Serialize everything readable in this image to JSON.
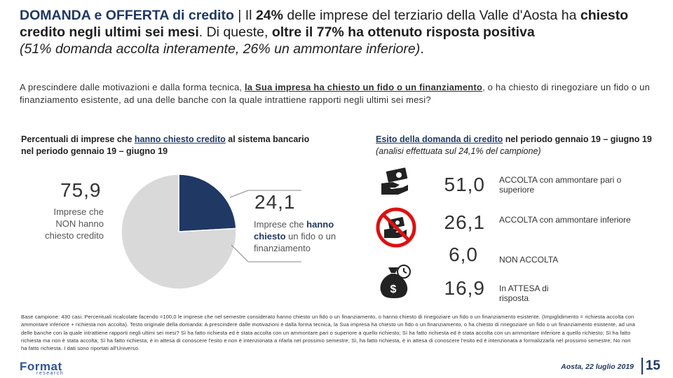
{
  "title": {
    "lead": "DOMANDA e OFFERTA di credito",
    "sep": " | ",
    "p1": "Il ",
    "p1b": "24%",
    "p2": " delle imprese del terziario della Valle d'Aosta ha ",
    "p2b": "chiesto credito negli ultimi sei mesi",
    "p3": ". Di queste, ",
    "p3b": "oltre il 77% ha ottenuto risposta positiva",
    "p4": "(51% domanda accolta interamente, 26% un ammontare inferiore)",
    "p4end": "."
  },
  "question": {
    "q1": "A prescindere dalle motivazioni e dalla forma tecnica, ",
    "q1u": "la Sua impresa ha chiesto un fido  o un finanziamento",
    "q2": ", o ha chiesto di rinegoziare un fido o un finanziamento esistente, ad una delle banche con la quale intrattiene rapporti negli ultimi sei mesi?"
  },
  "left_subtitle": {
    "a": "Percentuali di imprese che ",
    "link": "hanno chiesto credito",
    "b": " al sistema bancario nel periodo gennaio 19 – giugno 19"
  },
  "right_subtitle": {
    "link": "Esito della domanda di credito",
    "a": " nel periodo gennaio 19 – giugno 19 ",
    "note": "(analisi effettuata sul 24,1% del campione)"
  },
  "pie": {
    "no_value": "75,9",
    "no_label_1": "Imprese che",
    "no_label_2": "NON hanno",
    "no_label_3": "chiesto credito",
    "yes_value": "24,1",
    "yes_label_a": "Imprese che ",
    "yes_label_b": "hanno chiesto",
    "yes_label_c": " un fido o un finanziamento"
  },
  "chart_data": {
    "type": "pie",
    "title": "Percentuali di imprese che hanno chiesto credito al sistema bancario nel periodo gennaio 19 – giugno 19",
    "categories": [
      "Imprese che NON hanno chiesto credito",
      "Imprese che hanno chiesto un fido o un finanziamento"
    ],
    "values": [
      75.9,
      24.1
    ],
    "colors": [
      "#d9d9d9",
      "#1f3864"
    ]
  },
  "results": [
    {
      "value": "51,0",
      "label": "ACCOLTA con ammontare pari o superiore",
      "icon": "money-hand-icon"
    },
    {
      "value": "26,1",
      "label": "ACCOLTA con ammontare inferiore",
      "icon": "no-money-hand-icon"
    },
    {
      "value": "6,0",
      "label": "NON ACCOLTA",
      "icon": "none"
    },
    {
      "value": "16,9",
      "label": "In ATTESA di risposta",
      "icon": "money-bag-clock-icon"
    }
  ],
  "footnote": "Base campione: 430 casi. Percentuali ricalcolate facendo =100,0 le imprese che nel semestre considerato hanno chiesto un fido o un finanziamento, o hanno chiesto di rinegoziare un fido o un finanziamento esistente. (Impiglidimento = richiesta accolta con ammontare inferiore + richiesta non accolta). Testo originale della domanda: A prescindere dalle motivazioni e dalla forma tecnica, la Sua impresa ha chiesto un fido o un finanziamento, o ha chiesto di rinegoziare un fido o un finanziamento esistente, ad una delle banche con la quale intrattiene rapporti negli ultimi sei mesi? Sì ha fatto richiesta ed è stata accolta con un ammontare pari o superiore a quello richiesto; Sì ha fatto richiesta ed è stata accolta con un ammontare inferiore a quello richiesto; Sì ha fatto richiesta ma non è stata accolta; Sì ha fatto richiesta, è in attesa di conoscere l'esito e non è intenzionata a rifarla nel prossimo semestre; Sì, ha fatto richiesta, è in attesa di conoscere l'esito ed è intenzionata a formalizzarla nel prossimo semestre; No non ha fatto richiesta. I dati sono riportati all'Universo.",
  "footer": {
    "logo": "Format",
    "logo_sub": "research",
    "date": "Aosta, 22 luglio 2019",
    "page": "15"
  }
}
